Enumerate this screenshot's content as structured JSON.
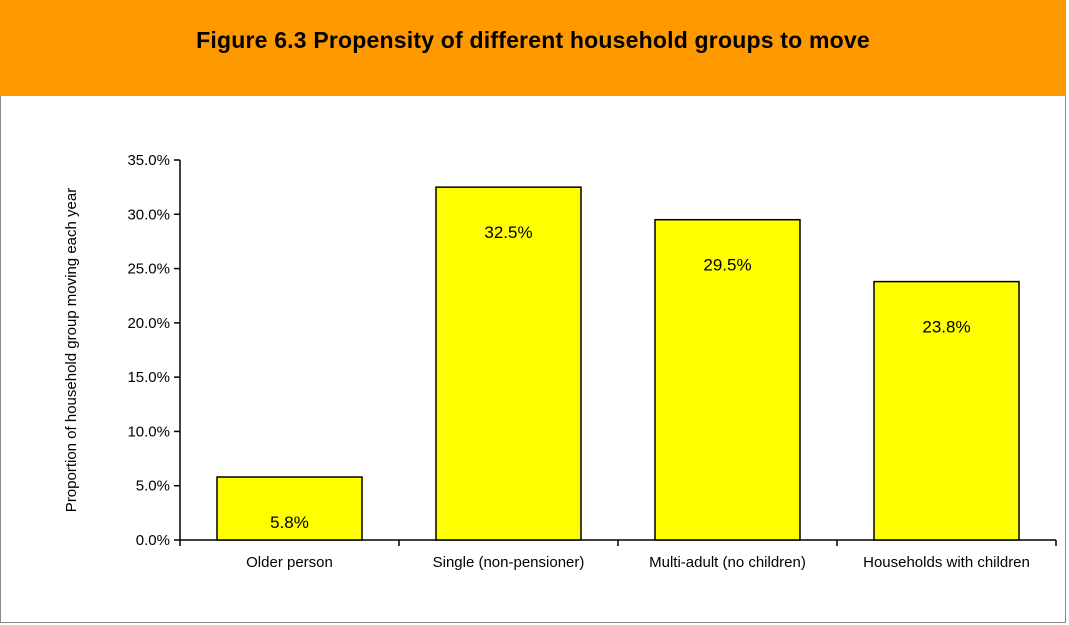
{
  "figure": {
    "title": "Figure 6.3 Propensity of different household groups to move"
  },
  "colors": {
    "header_bg": "#ff9900",
    "bar_fill": "#ffff00",
    "bar_stroke": "#000000"
  },
  "chart_data": {
    "type": "bar",
    "title": "Figure 6.3 Propensity of different household groups to move",
    "xlabel": "",
    "ylabel": "Proportion of household group moving each year",
    "categories": [
      "Older person",
      "Single (non-pensioner)",
      "Multi-adult (no children)",
      "Households with children"
    ],
    "values": [
      5.8,
      32.5,
      29.5,
      23.8
    ],
    "data_labels": [
      "5.8%",
      "32.5%",
      "29.5%",
      "23.8%"
    ],
    "ylim": [
      0,
      35
    ],
    "y_ticks": [
      0,
      5,
      10,
      15,
      20,
      25,
      30,
      35
    ],
    "y_tick_labels": [
      "0.0%",
      "5.0%",
      "10.0%",
      "15.0%",
      "20.0%",
      "25.0%",
      "30.0%",
      "35.0%"
    ],
    "grid": false,
    "legend": "none"
  }
}
